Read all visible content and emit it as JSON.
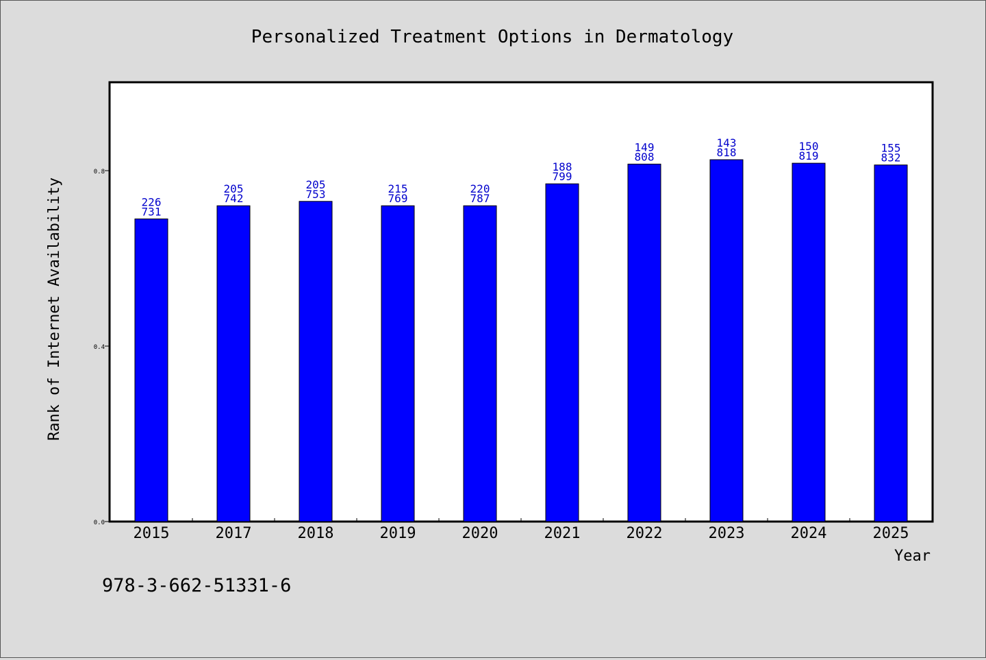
{
  "chart_data": {
    "type": "bar",
    "title": "Personalized Treatment Options in Dermatology",
    "xlabel": "Year",
    "ylabel": "Rank of Internet Availability",
    "ylim": [
      0,
      1.0
    ],
    "yticks": [
      0.0,
      0.4,
      0.8
    ],
    "ytick_labels": [
      "0.0",
      "0.4",
      "0.8"
    ],
    "grid": false,
    "categories": [
      "2015",
      "2017",
      "2018",
      "2019",
      "2020",
      "2021",
      "2022",
      "2023",
      "2024",
      "2025"
    ],
    "values": [
      0.69,
      0.72,
      0.73,
      0.72,
      0.72,
      0.77,
      0.815,
      0.825,
      0.817,
      0.813
    ],
    "label_top": [
      "226",
      "205",
      "205",
      "215",
      "220",
      "188",
      "149",
      "143",
      "150",
      "155"
    ],
    "label_bottom": [
      "731",
      "742",
      "753",
      "769",
      "787",
      "799",
      "808",
      "818",
      "819",
      "832"
    ],
    "bar_color": "#0000ff",
    "label_color": "#0000cc",
    "footer_text": "978-3-662-51331-6"
  }
}
